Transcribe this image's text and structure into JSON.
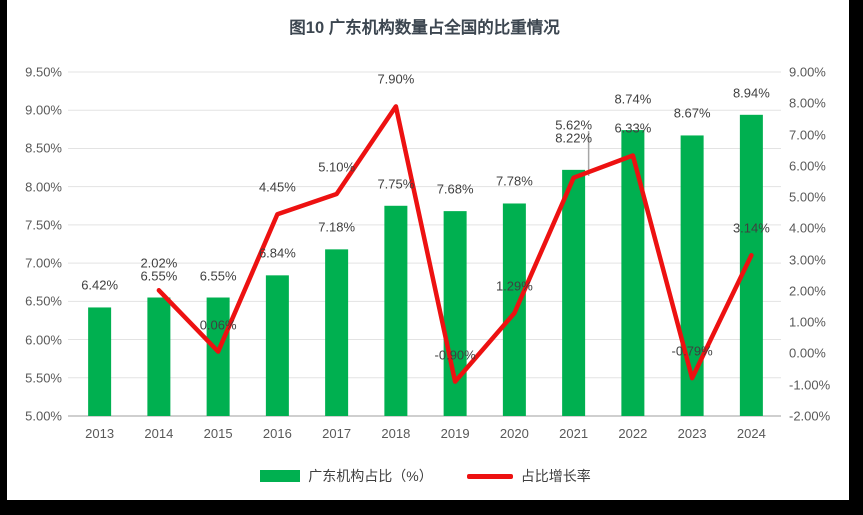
{
  "title": "图10  广东机构数量占全国的比重情况",
  "legend": {
    "bar_label": "广东机构占比（%）",
    "line_label": "占比增长率"
  },
  "colors": {
    "bar": "#00B050",
    "line": "#ED1111",
    "grid": "#E3E3E3",
    "baseline": "#CFCFCF",
    "leader": "#A6A6A6",
    "frame": "#000000"
  },
  "chart_data": {
    "type": "bar",
    "subtype": "bar-line-combo",
    "title": "图10  广东机构数量占全国的比重情况",
    "xlabel": "",
    "ylabel": "",
    "grid": true,
    "legend_position": "bottom",
    "categories": [
      "2013",
      "2014",
      "2015",
      "2016",
      "2017",
      "2018",
      "2019",
      "2020",
      "2021",
      "2022",
      "2023",
      "2024"
    ],
    "series": [
      {
        "name": "广东机构占比（%）",
        "type": "bar",
        "axis": "left",
        "color": "#00B050",
        "values": [
          6.42,
          6.55,
          6.55,
          6.84,
          7.18,
          7.75,
          7.68,
          7.78,
          8.22,
          8.74,
          8.67,
          8.94
        ],
        "labels": [
          "6.42%",
          "6.55%",
          "6.55%",
          "6.84%",
          "7.18%",
          "7.75%",
          "7.68%",
          "7.78%",
          "8.22%",
          "8.74%",
          "8.67%",
          "8.94%"
        ]
      },
      {
        "name": "占比增长率",
        "type": "line",
        "axis": "right",
        "color": "#ED1111",
        "values": [
          null,
          2.02,
          0.06,
          4.45,
          5.1,
          7.9,
          -0.9,
          1.29,
          5.62,
          6.33,
          -0.79,
          3.14
        ],
        "labels": [
          null,
          "2.02%",
          "0.06%",
          "4.45%",
          "5.10%",
          "7.90%",
          "-0.90%",
          "1.29%",
          "5.62%",
          "6.33%",
          "-0.79%",
          "3.14%"
        ]
      }
    ],
    "left_axis": {
      "min": 5.0,
      "max": 9.5,
      "step": 0.5,
      "tick_labels": [
        "9.50%",
        "9.00%",
        "8.50%",
        "8.00%",
        "7.50%",
        "7.00%",
        "6.50%",
        "6.00%",
        "5.50%",
        "5.00%"
      ]
    },
    "right_axis": {
      "min": -2.0,
      "max": 9.0,
      "step": 1.0,
      "tick_labels": [
        "9.00%",
        "8.00%",
        "7.00%",
        "6.00%",
        "5.00%",
        "4.00%",
        "3.00%",
        "2.00%",
        "1.00%",
        "0.00%",
        "-1.00%",
        "-2.00%"
      ]
    }
  }
}
